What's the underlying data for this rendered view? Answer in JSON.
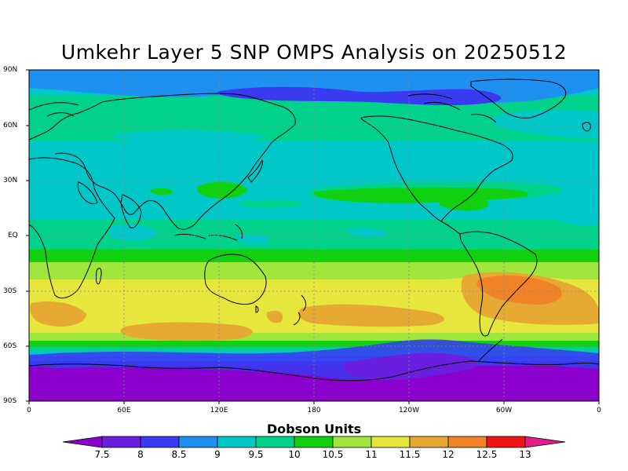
{
  "title": "Umkehr Layer 5 SNP OMPS Analysis on 20250512",
  "lat_labels": [
    "90N",
    "60N",
    "30N",
    "EQ",
    "30S",
    "60S",
    "90S"
  ],
  "lon_labels": [
    "0",
    "60E",
    "120E",
    "180",
    "120W",
    "60W",
    "0"
  ],
  "colorbar": {
    "title": "Dobson Units",
    "tick_labels": [
      "7.5",
      "8",
      "8.5",
      "9",
      "9.5",
      "10",
      "10.5",
      "11",
      "11.5",
      "12",
      "12.5",
      "13"
    ],
    "colors": [
      "#8b00cc",
      "#6a1ee0",
      "#3a3af0",
      "#1e90f0",
      "#00c8c8",
      "#00d28c",
      "#10d010",
      "#a0e63c",
      "#e6e63c",
      "#e6aa32",
      "#f08228",
      "#f01414",
      "#e01e8c"
    ]
  }
}
